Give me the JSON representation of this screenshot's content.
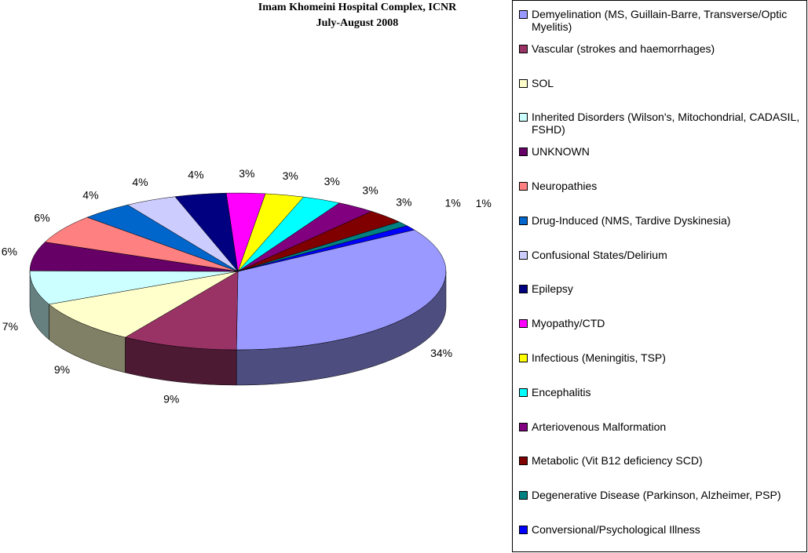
{
  "chart_data": {
    "type": "pie",
    "title": [
      "Imam Khomeini Hospital Complex, ICNR",
      "July-August 2008"
    ],
    "categories": [
      "Demyelination (MS, Guillain-Barre, Transverse/Optic Myelitis)",
      "Vascular (strokes and haemorrhages)",
      "SOL",
      "Inherited Disorders (Wilson's, Mitochondrial, CADASIL, FSHD)",
      "UNKNOWN",
      "Neuropathies",
      "Drug-Induced (NMS, Tardive Dyskinesia)",
      "Confusional States/Delirium",
      "Epilepsy",
      "Myopathy/CTD",
      "Infectious (Meningitis, TSP)",
      "Encephalitis",
      "Arteriovenous Malformation",
      "Metabolic (Vit B12 deficiency SCD)",
      "Degenerative Disease (Parkinson, Alzheimer, PSP)",
      "Conversional/Psychological Illness"
    ],
    "values": [
      34,
      9,
      9,
      7,
      6,
      6,
      4,
      4,
      4,
      3,
      3,
      3,
      3,
      3,
      1,
      1
    ],
    "value_labels": [
      "34%",
      "9%",
      "9%",
      "7%",
      "6%",
      "6%",
      "4%",
      "4%",
      "4%",
      "3%",
      "3%",
      "3%",
      "3%",
      "3%",
      "1%",
      "1%"
    ],
    "colors": [
      "#9999FF",
      "#993366",
      "#FFFFCC",
      "#CCFFFF",
      "#660066",
      "#FF8080",
      "#0066CC",
      "#CCCCFF",
      "#000080",
      "#FF00FF",
      "#FFFF00",
      "#00FFFF",
      "#800080",
      "#800000",
      "#008080",
      "#0000FF"
    ],
    "legend": "right"
  }
}
